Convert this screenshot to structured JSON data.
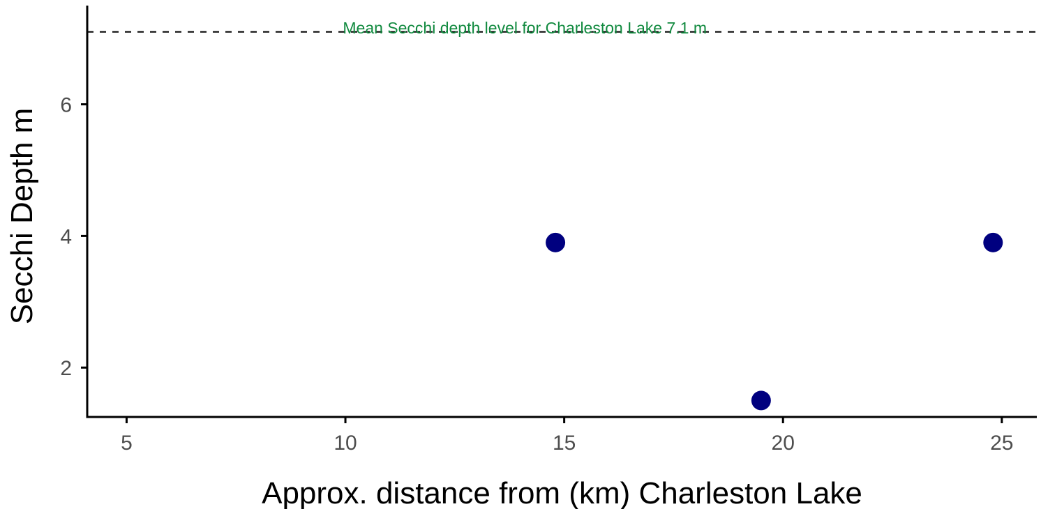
{
  "chart_data": {
    "type": "scatter",
    "xlabel": "Approx. distance from (km) Charleston Lake",
    "ylabel": "Secchi Depth m",
    "xlim": [
      4.1,
      25.8
    ],
    "ylim": [
      1.25,
      7.5
    ],
    "x_ticks": [
      5,
      10,
      15,
      20,
      25
    ],
    "y_ticks": [
      2,
      4,
      6
    ],
    "x_tick_labels": [
      "5",
      "10",
      "15",
      "20",
      "25"
    ],
    "y_tick_labels": [
      "2",
      "4",
      "6"
    ],
    "grid": false,
    "points": [
      {
        "x": 14.8,
        "y": 3.9
      },
      {
        "x": 19.5,
        "y": 1.5
      },
      {
        "x": 24.8,
        "y": 3.9
      }
    ],
    "reference_line": {
      "y": 7.1,
      "style": "dashed",
      "label": "Mean Secchi depth level for Charleston Lake 7.1 m",
      "label_x": 14.1
    },
    "colors": {
      "points": "#00007f",
      "reference_label": "#118a3f",
      "reference_line": "#000000",
      "axis": "#000000"
    }
  }
}
